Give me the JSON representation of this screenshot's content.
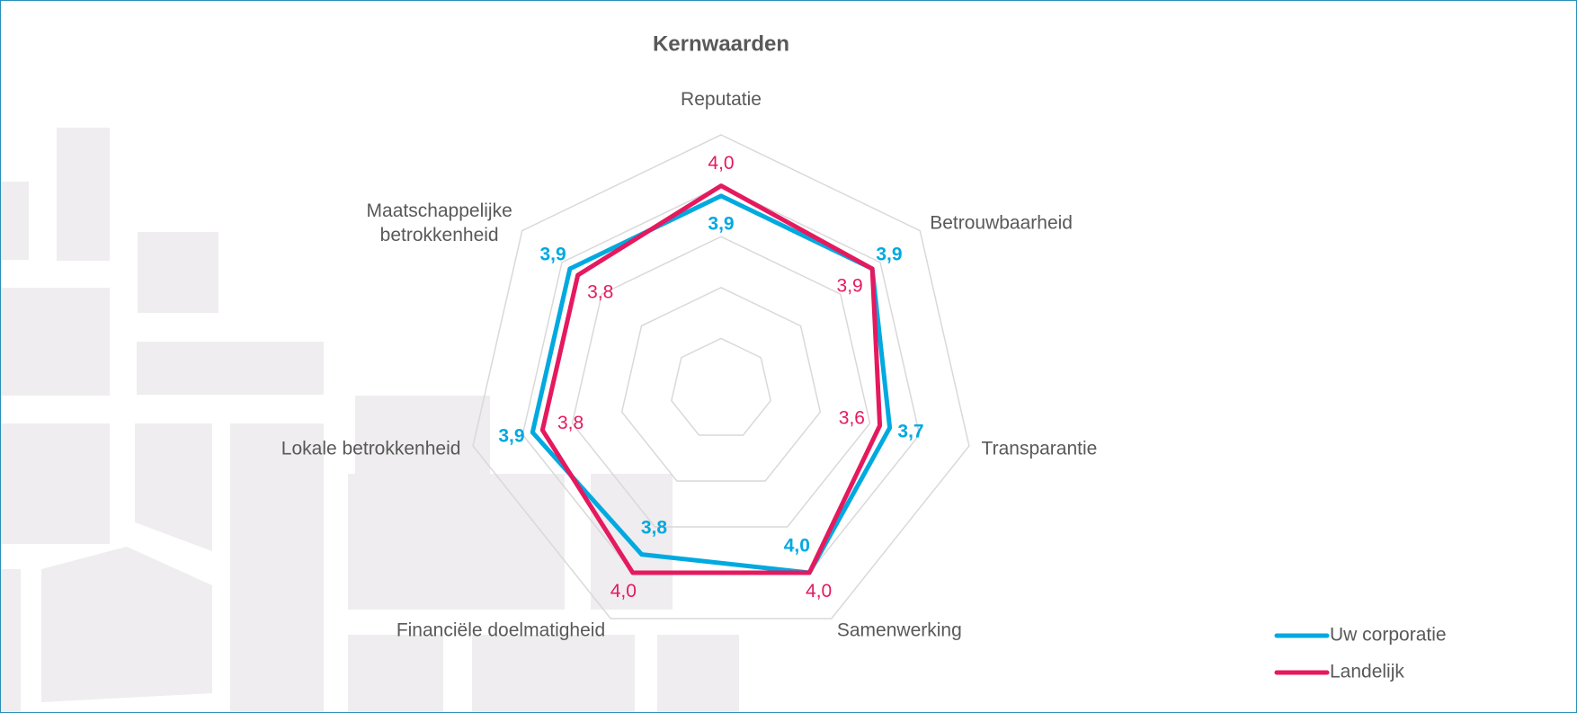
{
  "chart_data": {
    "type": "radar",
    "title": "Kernwaarden",
    "categories": [
      "Reputatie",
      "Betrouwbaarheid",
      "Transparantie",
      "Samenwerking",
      "Financiële doelmatigheid",
      "Lokale betrokkenheid",
      "Maatschappelijke\nbetrokkenheid"
    ],
    "series": [
      {
        "name": "Uw corporatie",
        "color": "#00a9e0",
        "values": [
          3.9,
          3.9,
          3.7,
          4.0,
          3.8,
          3.9,
          3.9
        ],
        "value_labels": [
          "3,9",
          "3,9",
          "3,7",
          "4,0",
          "3,8",
          "3,9",
          "3,9"
        ]
      },
      {
        "name": "Landelijk",
        "color": "#e5195e",
        "values": [
          4.0,
          3.9,
          3.6,
          4.0,
          4.0,
          3.8,
          3.8
        ],
        "value_labels": [
          "4,0",
          "3,9",
          "3,6",
          "4,0",
          "4,0",
          "3,8",
          "3,8"
        ]
      }
    ],
    "rlim": [
      2,
      4.5
    ],
    "rticks": [
      2.5,
      3,
      3.5,
      4,
      4.5
    ],
    "grid": true,
    "legend": "bottom-right"
  }
}
